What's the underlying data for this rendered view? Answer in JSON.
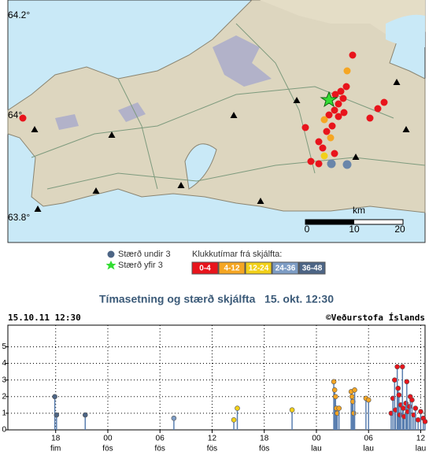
{
  "map": {
    "lat_labels": [
      "64.2°",
      "64°",
      "63.8°"
    ],
    "scale_unit": "km",
    "scale_labels": [
      "0",
      "10",
      "20"
    ],
    "legend": {
      "small": "Stærð undir 3",
      "large": "Stærð yfir 3",
      "age_title": "Klukkutímar frá skjálfta:"
    }
  },
  "chart_data": {
    "type": "stem",
    "title": "Tímasetning og stærð skjálfta   15. okt. 12:30",
    "timestamp": "15.10.11 12:30",
    "credit": "©Veðurstofa Íslands",
    "xlim": [
      0,
      48
    ],
    "xticks": [
      {
        "value": 5.5,
        "label": "18"
      },
      {
        "value": 11.5,
        "label": "00"
      },
      {
        "value": 17.5,
        "label": "06"
      },
      {
        "value": 23.5,
        "label": "12"
      },
      {
        "value": 29.5,
        "label": "18"
      },
      {
        "value": 35.5,
        "label": "00"
      },
      {
        "value": 41.5,
        "label": "06"
      },
      {
        "value": 47.5,
        "label": "12"
      }
    ],
    "xtick_days": [
      "fim",
      "fös",
      "fös",
      "fös",
      "fös",
      "lau",
      "lau",
      "lau"
    ],
    "ylim": [
      0,
      6.3
    ],
    "yticks": [
      0,
      1,
      2,
      3,
      4,
      5
    ],
    "grid": true,
    "stem_color": "#5a7fb0",
    "series": [
      {
        "name": "0-4",
        "color": "#e8141c",
        "x": [
          44.1,
          44.3,
          44.5,
          44.6,
          44.8,
          44.9,
          45.0,
          45.1,
          45.2,
          45.4,
          45.5,
          45.6,
          45.8,
          45.9,
          46.0,
          46.2,
          46.3,
          46.5,
          46.7,
          46.9,
          47.2,
          47.5,
          47.8,
          48.0
        ],
        "values": [
          1.0,
          1.9,
          3.0,
          1.2,
          3.8,
          2.5,
          2.1,
          0.9,
          1.5,
          3.8,
          1.3,
          0.8,
          1.6,
          2.9,
          1.1,
          1.4,
          2.0,
          1.8,
          0.9,
          1.3,
          0.6,
          1.1,
          0.7,
          0.5
        ]
      },
      {
        "name": "4-12",
        "color": "#f5a623",
        "x": [
          37.5,
          37.6,
          37.7,
          37.8,
          37.9,
          38.1,
          39.5,
          39.6,
          39.7,
          39.8,
          39.9,
          41.2,
          41.5
        ],
        "values": [
          2.9,
          2.4,
          2.0,
          1.3,
          1.0,
          1.3,
          2.3,
          2.0,
          1.7,
          1.0,
          2.4,
          1.9,
          1.8
        ]
      },
      {
        "name": "12-24",
        "color": "#f2d019",
        "x": [
          26.0,
          26.4,
          32.7
        ],
        "values": [
          0.6,
          1.3,
          1.2
        ]
      },
      {
        "name": "24-36",
        "color": "#7d9cc4",
        "x": [
          19.1
        ],
        "values": [
          0.7
        ]
      },
      {
        "name": "36-48",
        "color": "#4d6585",
        "x": [
          5.4,
          5.6,
          8.9
        ],
        "values": [
          2.0,
          0.9,
          0.9
        ]
      }
    ]
  }
}
